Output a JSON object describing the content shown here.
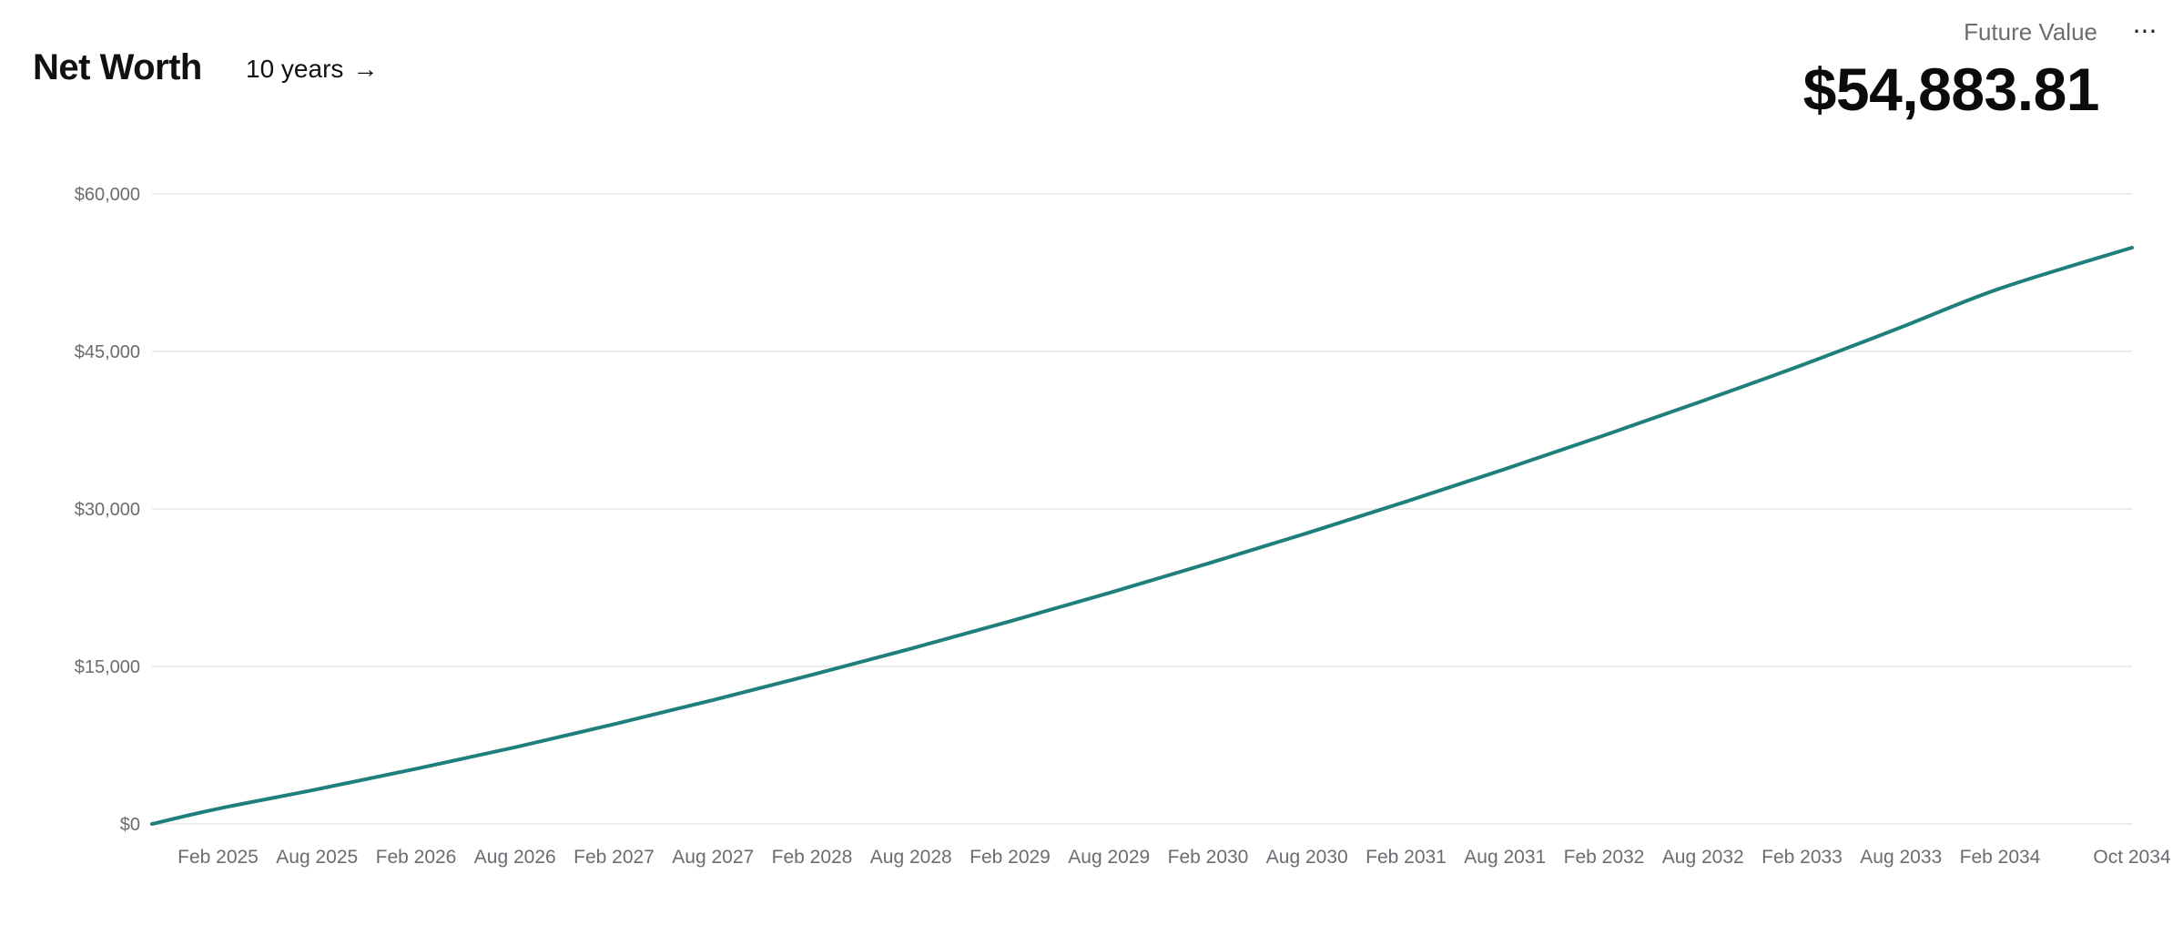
{
  "header": {
    "title": "Net Worth",
    "range_label": "10 years",
    "range_arrow": "→",
    "future_value_label": "Future Value",
    "future_value": "$54,883.81",
    "more_icon": "ellipsis-icon",
    "more_glyph": "···"
  },
  "colors": {
    "line": "#1f7f7b",
    "grid": "#ececec",
    "tick_text": "#6b6b72"
  },
  "chart_data": {
    "type": "line",
    "title": "",
    "xlabel": "",
    "ylabel": "",
    "ylim": [
      0,
      60000
    ],
    "y_ticks": [
      0,
      15000,
      30000,
      45000,
      60000
    ],
    "y_tick_labels": [
      "$0",
      "$15,000",
      "$30,000",
      "$45,000",
      "$60,000"
    ],
    "x_ticks": [
      "2025-02",
      "2025-08",
      "2026-02",
      "2026-08",
      "2027-02",
      "2027-08",
      "2028-02",
      "2028-08",
      "2029-02",
      "2029-08",
      "2030-02",
      "2030-08",
      "2031-02",
      "2031-08",
      "2032-02",
      "2032-08",
      "2033-02",
      "2033-08",
      "2034-02",
      "2034-10"
    ],
    "x_tick_labels": [
      "Feb 2025",
      "Aug 2025",
      "Feb 2026",
      "Aug 2026",
      "Feb 2027",
      "Aug 2027",
      "Feb 2028",
      "Aug 2028",
      "Feb 2029",
      "Aug 2029",
      "Feb 2030",
      "Aug 2030",
      "Feb 2031",
      "Aug 2031",
      "Feb 2032",
      "Aug 2032",
      "Feb 2033",
      "Aug 2033",
      "Feb 2034",
      "Oct 2034"
    ],
    "grid": true,
    "legend": "none",
    "series": [
      {
        "x": [
          "2024-10",
          "2025-02",
          "2025-08",
          "2026-02",
          "2026-08",
          "2027-02",
          "2027-08",
          "2028-02",
          "2028-08",
          "2029-02",
          "2029-08",
          "2030-02",
          "2030-08",
          "2031-02",
          "2031-08",
          "2032-02",
          "2032-08",
          "2033-02",
          "2033-08",
          "2034-02",
          "2034-10"
        ],
        "values": [
          0,
          1450,
          3300,
          5250,
          7300,
          9500,
          11800,
          14200,
          16700,
          19300,
          22000,
          24800,
          27700,
          30700,
          33800,
          37000,
          40300,
          43700,
          47300,
          51000,
          54884
        ]
      }
    ]
  }
}
